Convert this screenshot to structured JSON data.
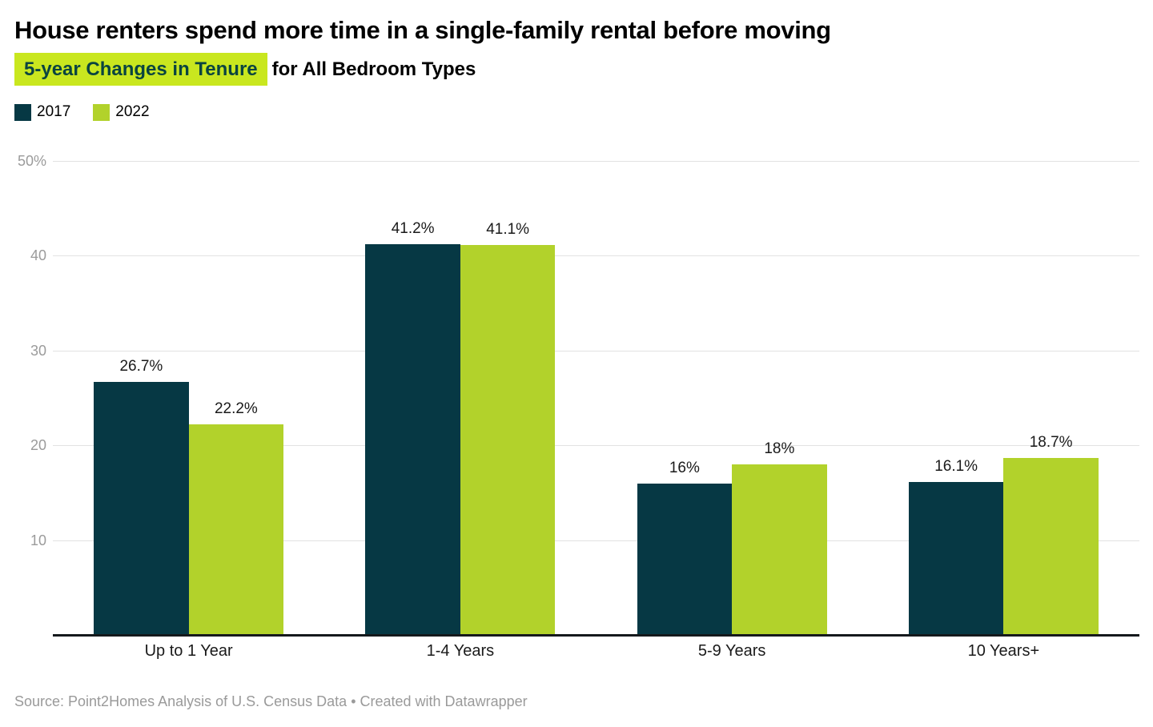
{
  "header": {
    "title": "House renters spend more time in a single-family rental before moving",
    "subtitle_highlight": "5-year Changes in Tenure",
    "subtitle_rest": "for All Bedroom Types"
  },
  "footer": {
    "source": "Source: Point2Homes Analysis of U.S. Census Data • Created with Datawrapper"
  },
  "colors": {
    "series_2017": "#063844",
    "series_2022": "#b2d22b",
    "subtitle_highlight_bg": "#c9e71f",
    "subtitle_highlight_text": "#0a4440",
    "gridline": "#e2e2e2",
    "axis_line": "#15191c",
    "tick_label": "#9b9b9b",
    "source_text": "#9a9a9a"
  },
  "chart_data": {
    "type": "bar",
    "title": "House renters spend more time in a single-family rental before moving",
    "subtitle": "5-year Changes in Tenure for All Bedroom Types",
    "categories": [
      "Up to 1 Year",
      "1-4 Years",
      "5-9 Years",
      "10 Years+"
    ],
    "series": [
      {
        "name": "2017",
        "color": "#063844",
        "values": [
          26.7,
          41.2,
          16,
          16.1
        ],
        "labels": [
          "26.7%",
          "41.2%",
          "16%",
          "16.1%"
        ]
      },
      {
        "name": "2022",
        "color": "#b2d22b",
        "values": [
          22.2,
          41.1,
          18,
          18.7
        ],
        "labels": [
          "22.2%",
          "41.1%",
          "18%",
          "18.7%"
        ]
      }
    ],
    "xlabel": "",
    "ylabel": "",
    "ylim": [
      0,
      50
    ],
    "yticks": [
      {
        "value": 10,
        "label": "10"
      },
      {
        "value": 20,
        "label": "20"
      },
      {
        "value": 30,
        "label": "30"
      },
      {
        "value": 40,
        "label": "40"
      },
      {
        "value": 50,
        "label": "50%"
      }
    ],
    "grid": true,
    "legend_position": "top-left"
  }
}
